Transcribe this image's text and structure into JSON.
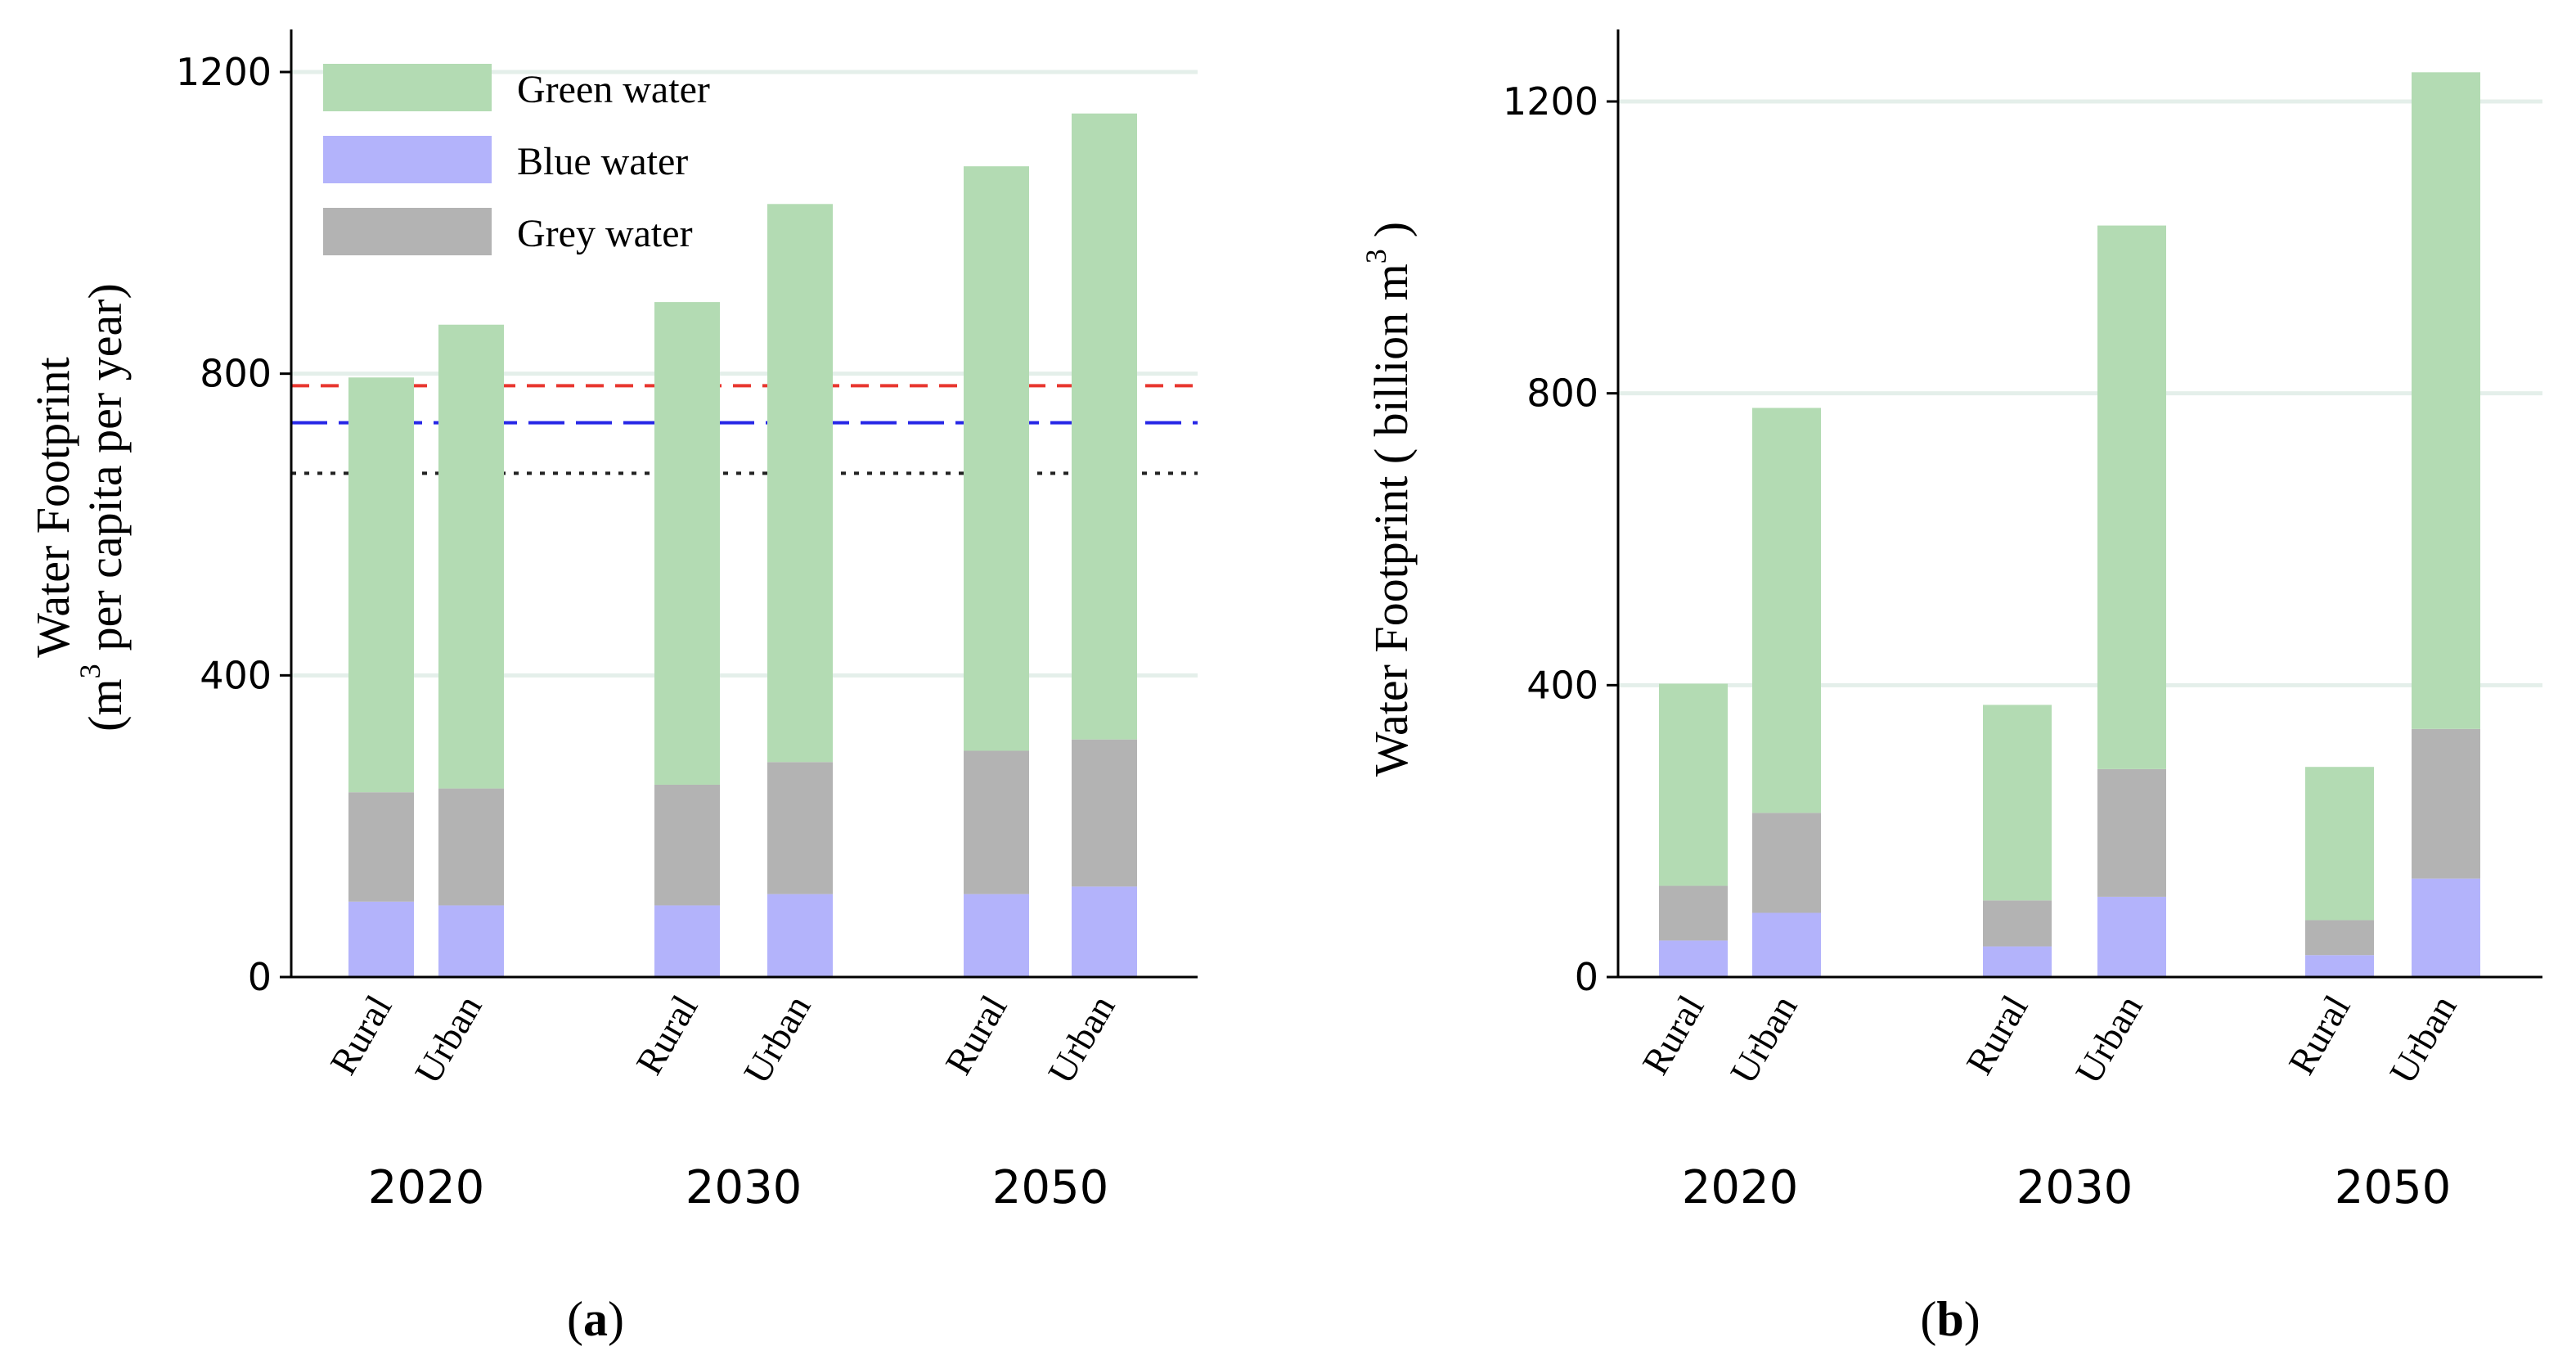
{
  "chart_data": [
    {
      "type": "bar",
      "stacked": true,
      "panel_label": "a",
      "ylabel": "Water Footprint",
      "ylabel_line2_prefix": "(m",
      "ylabel_sup": "3",
      "ylabel_line2_suffix": "per capita per year)",
      "ylim": [
        0,
        1250
      ],
      "yticks": [
        0,
        400,
        800,
        1200
      ],
      "groups": [
        "2020",
        "2030",
        "2050"
      ],
      "categories": [
        "Rural",
        "Urban"
      ],
      "legend": [
        "Green water",
        "Blue water",
        "Grey water"
      ],
      "legend_position": "top-left",
      "series": [
        {
          "name": "Blue water",
          "color": "#b3b3fb",
          "values": [
            [
              100,
              95
            ],
            [
              95,
              110
            ],
            [
              110,
              120
            ]
          ]
        },
        {
          "name": "Grey water",
          "color": "#b3b3b3",
          "values": [
            [
              145,
              155
            ],
            [
              160,
              175
            ],
            [
              190,
              195
            ]
          ]
        },
        {
          "name": "Green water",
          "color": "#b3dbb3",
          "values": [
            [
              550,
              615
            ],
            [
              640,
              740
            ],
            [
              775,
              830
            ]
          ]
        }
      ],
      "reference_lines": [
        {
          "y": 784,
          "color": "#e8362f",
          "style": "dashed"
        },
        {
          "y": 735,
          "color": "#2626e6",
          "style": "long-dashed"
        },
        {
          "y": 668,
          "color": "#222222",
          "style": "dotted"
        }
      ]
    },
    {
      "type": "bar",
      "stacked": true,
      "panel_label": "b",
      "ylabel_prefix": "Water Footprint ( billion m",
      "ylabel_sup": "3",
      "ylabel_suffix": ")",
      "ylim": [
        0,
        1300
      ],
      "yticks": [
        0,
        400,
        800,
        1200
      ],
      "groups": [
        "2020",
        "2030",
        "2050"
      ],
      "categories": [
        "Rural",
        "Urban"
      ],
      "series": [
        {
          "name": "Blue water",
          "color": "#b3b3fb",
          "values": [
            [
              50,
              88
            ],
            [
              42,
              110
            ],
            [
              30,
              135
            ]
          ]
        },
        {
          "name": "Grey water",
          "color": "#b3b3b3",
          "values": [
            [
              75,
              137
            ],
            [
              63,
              175
            ],
            [
              48,
              205
            ]
          ]
        },
        {
          "name": "Green water",
          "color": "#b3dbb3",
          "values": [
            [
              277,
              555
            ],
            [
              268,
              745
            ],
            [
              210,
              900
            ]
          ]
        }
      ]
    }
  ]
}
